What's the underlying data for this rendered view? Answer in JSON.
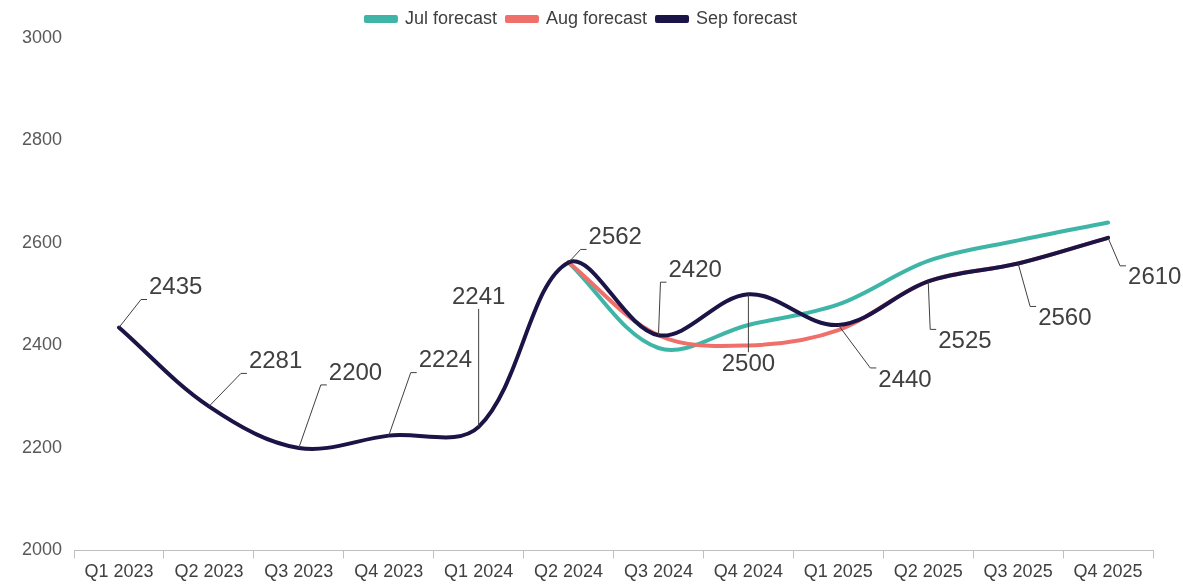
{
  "chart_data": {
    "type": "line",
    "categories": [
      "Q1 2023",
      "Q2 2023",
      "Q3 2023",
      "Q4 2023",
      "Q1 2024",
      "Q2 2024",
      "Q3 2024",
      "Q4 2024",
      "Q1 2025",
      "Q2 2025",
      "Q3 2025",
      "Q4 2025"
    ],
    "series": [
      {
        "name": "Jul forecast",
        "color": "#3fb5a8",
        "values": [
          null,
          null,
          null,
          null,
          null,
          2562,
          2395,
          2440,
          2480,
          2565,
          2605,
          2640
        ]
      },
      {
        "name": "Aug forecast",
        "color": "#ef6f6a",
        "values": [
          null,
          null,
          null,
          null,
          null,
          2562,
          2420,
          2400,
          2430,
          2525,
          2560,
          2610
        ]
      },
      {
        "name": "Sep forecast",
        "color": "#1b1446",
        "values": [
          2435,
          2281,
          2200,
          2224,
          2241,
          2562,
          2420,
          2500,
          2440,
          2525,
          2560,
          2610
        ],
        "value_labels": [
          "2435",
          "2281",
          "2200",
          "2224",
          "2241",
          "2562",
          "2420",
          "2500",
          "2440",
          "2525",
          "2560",
          "2610"
        ]
      }
    ],
    "ylim": [
      2000,
      3000
    ],
    "yticks": [
      2000,
      2200,
      2400,
      2600,
      2800,
      3000
    ],
    "grid": false,
    "legend": "top",
    "marker": "none",
    "line_style": "solid"
  }
}
